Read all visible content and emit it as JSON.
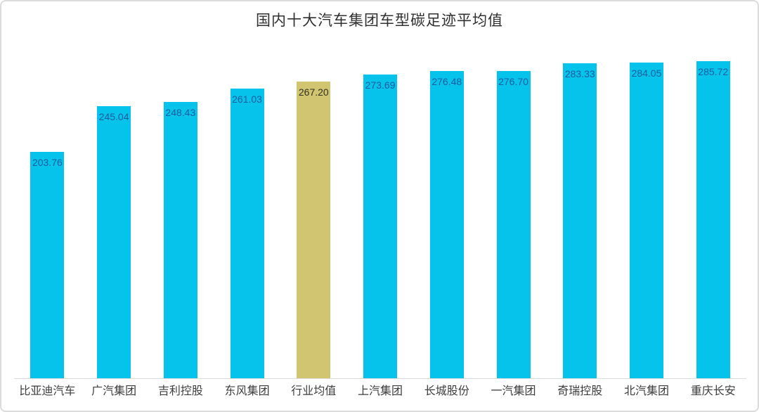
{
  "title": "国内十大汽车集团车型碳足迹平均值",
  "chart_data": {
    "type": "bar",
    "title": "国内十大汽车集团车型碳足迹平均值",
    "categories": [
      "比亚迪汽车",
      "广汽集团",
      "吉利控股",
      "东风集团",
      "行业均值",
      "上汽集团",
      "长城股份",
      "一汽集团",
      "奇瑞控股",
      "北汽集团",
      "重庆长安"
    ],
    "values": [
      203.76,
      245.04,
      248.43,
      261.03,
      267.2,
      273.69,
      276.48,
      276.7,
      283.33,
      284.05,
      285.72
    ],
    "value_labels": [
      "203.76",
      "245.04",
      "248.43",
      "261.03",
      "267.20",
      "273.69",
      "276.48",
      "276.70",
      "283.33",
      "284.05",
      "285.72"
    ],
    "highlight_index": 4,
    "xlabel": "",
    "ylabel": "",
    "ylim": [
      0,
      300
    ],
    "grid": false,
    "legend": false,
    "value_label_position": "inside-top",
    "colors": {
      "bar": "#05c3eb",
      "highlight_bar": "#d2c572",
      "bar_value_label": "#1a5c9e",
      "highlight_value_label": "#33301f",
      "axis_line": "#dcdcdc",
      "title_text": "#303030",
      "category_label": "#3d3d3d",
      "frame_border": "#dcdcdc",
      "background": "#ffffff"
    }
  }
}
